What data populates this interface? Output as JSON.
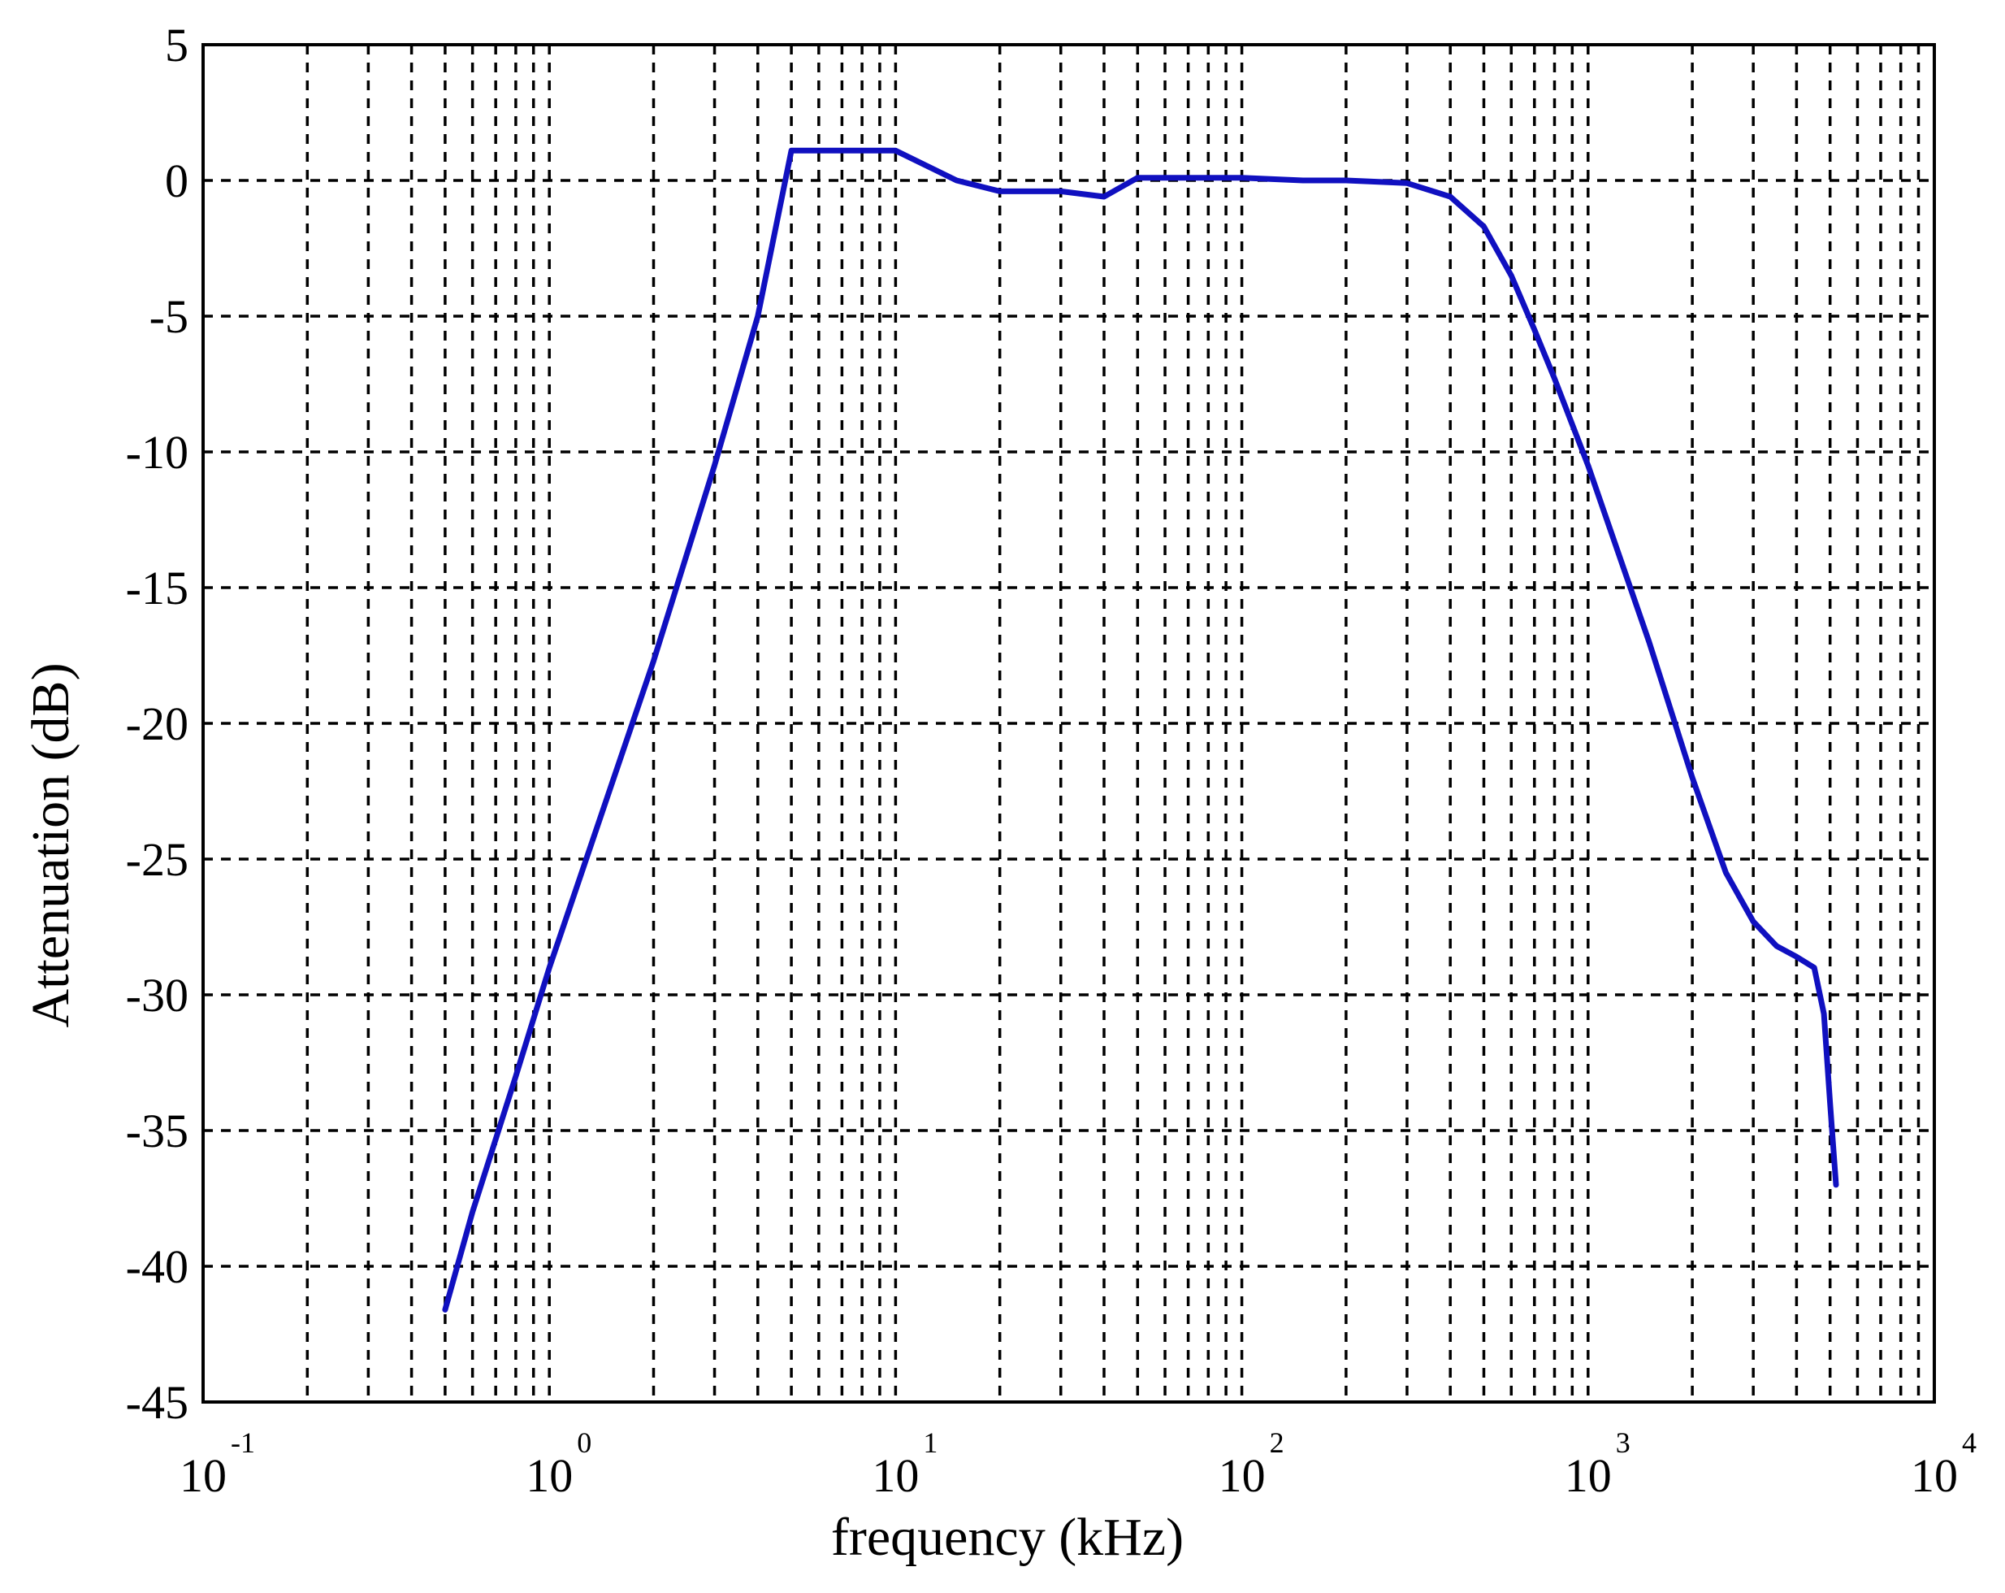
{
  "colors": {
    "line": "#1010c0",
    "grid": "#000000",
    "axes": "#000000",
    "background": "#ffffff"
  },
  "chart_data": {
    "type": "line",
    "title": "",
    "xlabel": "frequency (kHz)",
    "ylabel": "Attenuation (dB)",
    "xscale": "log",
    "xlim": [
      0.1,
      10000
    ],
    "ylim": [
      -45,
      5
    ],
    "grid": true,
    "grid_style": "dashed",
    "legend": "none",
    "x_tick_labels": [
      {
        "value": 0.1,
        "base": "10",
        "exp": "-1"
      },
      {
        "value": 1,
        "base": "10",
        "exp": "0"
      },
      {
        "value": 10,
        "base": "10",
        "exp": "1"
      },
      {
        "value": 100,
        "base": "10",
        "exp": "2"
      },
      {
        "value": 1000,
        "base": "10",
        "exp": "3"
      },
      {
        "value": 10000,
        "base": "10",
        "exp": "4"
      }
    ],
    "y_ticks": [
      5,
      0,
      -5,
      -10,
      -15,
      -20,
      -25,
      -30,
      -35,
      -40,
      -45
    ],
    "y_tick_labels": [
      "5",
      "0",
      "-5",
      "-10",
      "-15",
      "-20",
      "-25",
      "-30",
      "-35",
      "-40",
      "-45"
    ],
    "series": [
      {
        "x": [
          0.5,
          0.6,
          0.8,
          1,
          2,
          3,
          4,
          5,
          6,
          8,
          10,
          15,
          20,
          30,
          40,
          50,
          60,
          80,
          100,
          150,
          200,
          300,
          400,
          500,
          600,
          700,
          800,
          1000,
          1500,
          2000,
          2500,
          3000,
          3500,
          4000,
          4500,
          4800,
          5000,
          5200
        ],
        "y": [
          -41.6,
          -38,
          -33,
          -29,
          -17.7,
          -10.5,
          -5,
          1.1,
          1.1,
          1.1,
          1.1,
          0,
          -0.4,
          -0.4,
          -0.6,
          0.1,
          0.1,
          0.1,
          0.1,
          0,
          0,
          -0.1,
          -0.6,
          -1.7,
          -3.5,
          -5.5,
          -7.3,
          -10.5,
          -17,
          -22,
          -25.5,
          -27.3,
          -28.2,
          -28.6,
          -29,
          -30.7,
          -34,
          -37
        ]
      }
    ]
  }
}
